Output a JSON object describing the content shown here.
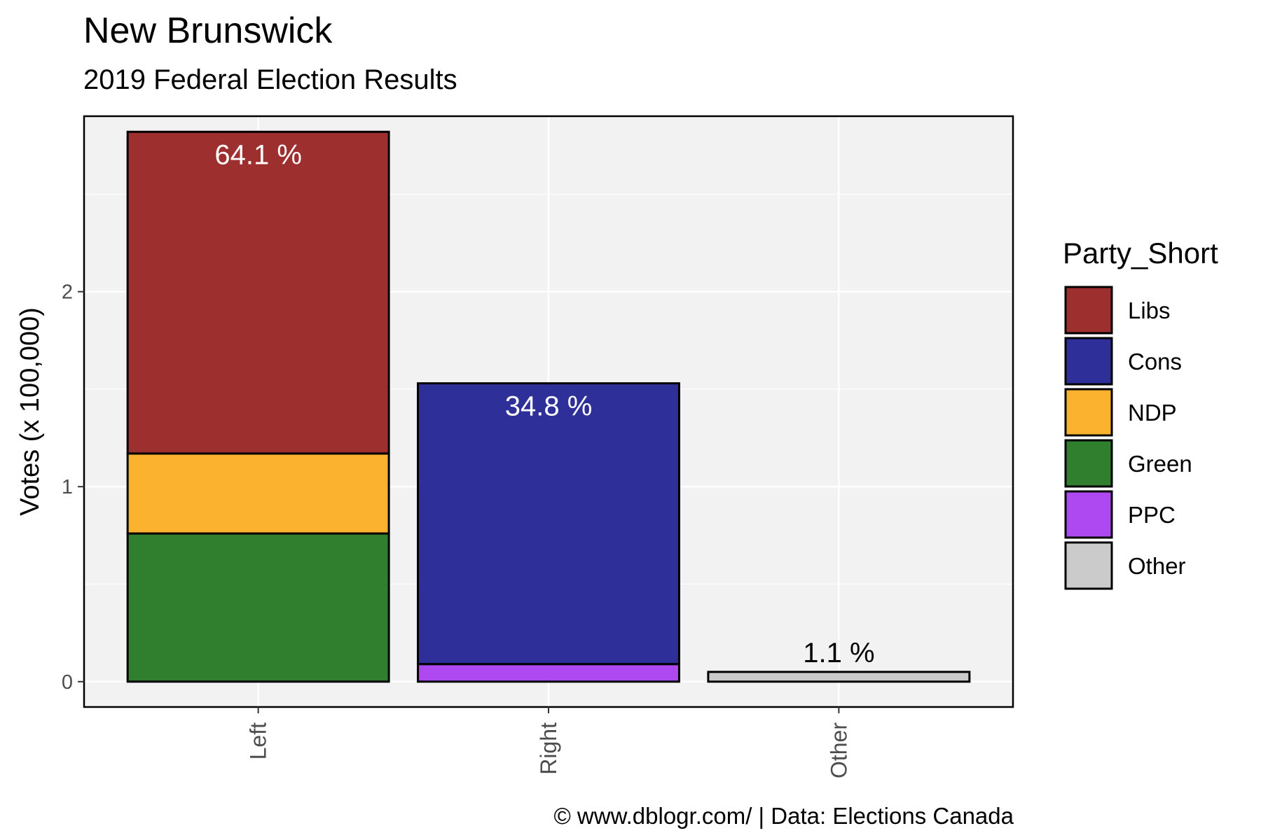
{
  "header": {
    "title": "New Brunswick",
    "subtitle": "2019 Federal Election Results",
    "caption": "© www.dblogr.com/  |  Data: Elections Canada"
  },
  "chart_data": {
    "type": "bar",
    "stacked": true,
    "categories": [
      "Left",
      "Right",
      "Other"
    ],
    "ylabel": "Votes (x 100,000)",
    "xlabel": "",
    "ylim": [
      -0.13,
      2.9
    ],
    "yticks": [
      0,
      1,
      2
    ],
    "grid": true,
    "legend_title": "Party_Short",
    "legend_position": "right",
    "series": [
      {
        "name": "Libs",
        "color": "#9e2f2f",
        "values": [
          1.65,
          0,
          0
        ]
      },
      {
        "name": "Cons",
        "color": "#2f2f9a",
        "values": [
          0,
          1.44,
          0
        ]
      },
      {
        "name": "NDP",
        "color": "#fbb22f",
        "values": [
          0.41,
          0,
          0
        ]
      },
      {
        "name": "Green",
        "color": "#2f7f2f",
        "values": [
          0.76,
          0,
          0
        ]
      },
      {
        "name": "PPC",
        "color": "#ae49f2",
        "values": [
          0,
          0.09,
          0
        ]
      },
      {
        "name": "Other",
        "color": "#cbcbcb",
        "values": [
          0,
          0,
          0.05
        ]
      }
    ],
    "stack_order": [
      "Green",
      "NDP",
      "Libs",
      "PPC",
      "Cons",
      "Other"
    ],
    "bar_labels": [
      {
        "category": "Left",
        "text": "64.1 %",
        "color": "#ffffff",
        "placement": "inside-top"
      },
      {
        "category": "Right",
        "text": "34.8 %",
        "color": "#ffffff",
        "placement": "inside-top"
      },
      {
        "category": "Other",
        "text": "1.1 %",
        "color": "#000000",
        "placement": "above"
      }
    ]
  }
}
